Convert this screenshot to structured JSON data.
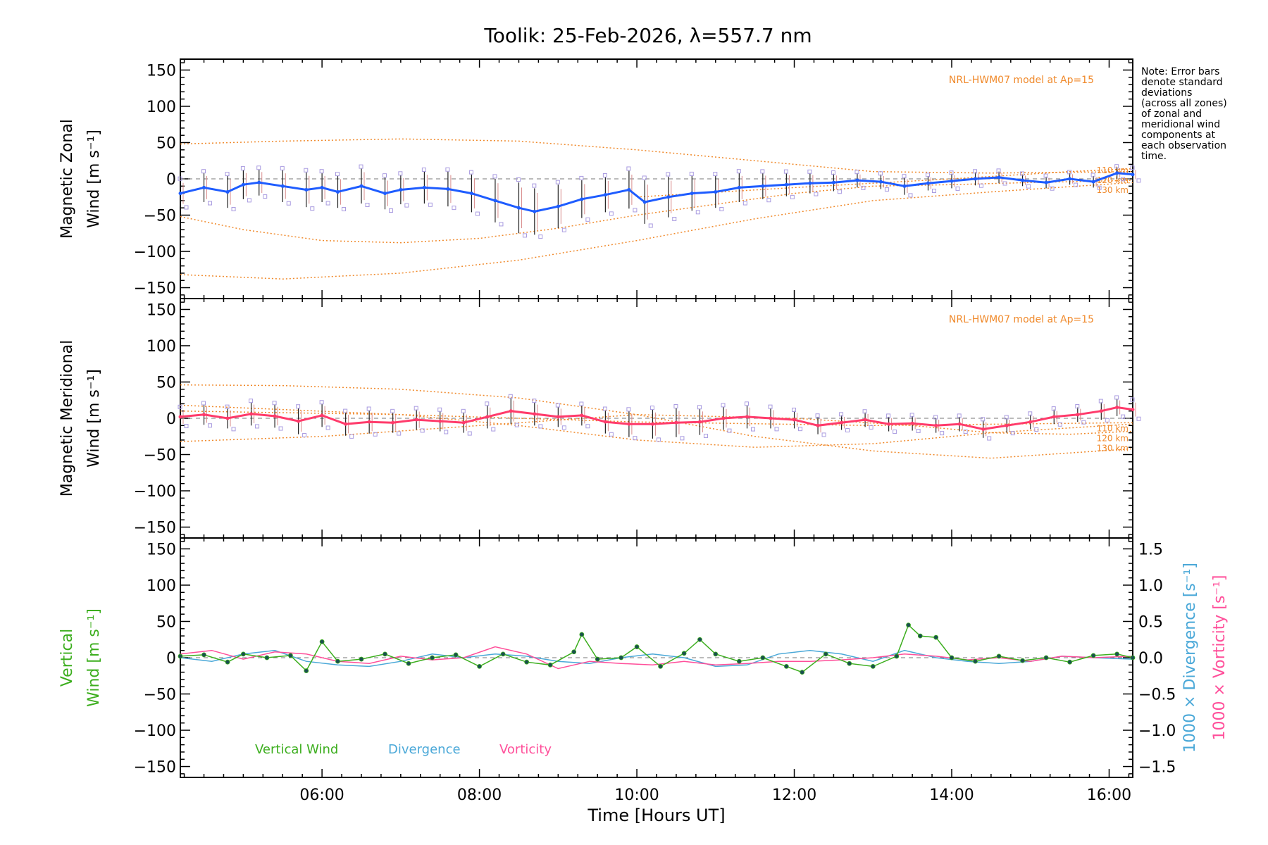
{
  "chart_data": {
    "type": "line",
    "title": "Toolik: 25-Feb-2026, λ=557.7 nm",
    "xlabel": "Time [Hours UT]",
    "xlim": [
      4.2,
      16.3
    ],
    "xticks": [
      6,
      8,
      10,
      12,
      14,
      16
    ],
    "xtick_labels": [
      "06:00",
      "08:00",
      "10:00",
      "12:00",
      "14:00",
      "16:00"
    ],
    "ylim": [
      -165,
      165
    ],
    "yticks": [
      -150,
      -100,
      -50,
      0,
      50,
      100,
      150
    ],
    "ytick_labels": [
      "−150",
      "−100",
      "−50",
      "0",
      "50",
      "100",
      "150"
    ],
    "note_lines": [
      "Note: Error bars",
      "denote standard",
      "deviations",
      "(across all zones)",
      "of zonal and",
      "meridional wind",
      "components at",
      "each observation",
      "time."
    ],
    "panels": [
      {
        "id": "zonal",
        "ylabel_line1": "Magnetic Zonal",
        "ylabel_line2": "Wind [m s⁻¹]",
        "model_label": "NRL-HWM07 model at Ap=15",
        "series_color": "#1e5cff",
        "series": {
          "name": "Magnetic Zonal Wind",
          "x": [
            4.2,
            4.5,
            4.8,
            5.0,
            5.2,
            5.5,
            5.8,
            6.0,
            6.2,
            6.5,
            6.8,
            7.0,
            7.3,
            7.6,
            7.9,
            8.2,
            8.5,
            8.7,
            9.0,
            9.3,
            9.6,
            9.9,
            10.1,
            10.4,
            10.7,
            11.0,
            11.3,
            11.6,
            11.9,
            12.2,
            12.5,
            12.8,
            13.1,
            13.4,
            13.7,
            14.0,
            14.3,
            14.6,
            14.9,
            15.2,
            15.5,
            15.8,
            16.1,
            16.3
          ],
          "y": [
            -20,
            -12,
            -18,
            -8,
            -5,
            -10,
            -15,
            -12,
            -18,
            -10,
            -20,
            -15,
            -12,
            -14,
            -20,
            -30,
            -40,
            -45,
            -38,
            -28,
            -22,
            -15,
            -32,
            -25,
            -20,
            -18,
            -12,
            -10,
            -8,
            -6,
            -5,
            -2,
            -4,
            -10,
            -6,
            -3,
            0,
            2,
            -2,
            -5,
            0,
            -4,
            8,
            6
          ]
        },
        "errors": [
          18,
          20,
          22,
          20,
          18,
          22,
          24,
          20,
          22,
          24,
          22,
          20,
          22,
          24,
          26,
          30,
          35,
          32,
          30,
          26,
          24,
          26,
          30,
          28,
          24,
          22,
          20,
          18,
          16,
          14,
          12,
          10,
          10,
          12,
          10,
          10,
          9,
          8,
          8,
          8,
          8,
          8,
          8,
          8
        ],
        "model_curves": [
          {
            "label": "",
            "x": [
              4.2,
              5.5,
              7.0,
              8.5,
              10.0,
              11.5,
              13.0,
              14.5,
              16.3
            ],
            "y": [
              48,
              52,
              55,
              52,
              40,
              25,
              10,
              8,
              10
            ]
          },
          {
            "label": "",
            "x": [
              4.2,
              5.0,
              6.0,
              7.0,
              8.0,
              9.0,
              10.0,
              11.0,
              12.0,
              13.0,
              14.0,
              15.0,
              16.3
            ],
            "y": [
              -52,
              -70,
              -85,
              -88,
              -82,
              -68,
              -50,
              -35,
              -20,
              -10,
              -8,
              -5,
              -2
            ]
          },
          {
            "label": "",
            "x": [
              4.2,
              5.5,
              7.0,
              8.5,
              10.0,
              11.5,
              13.0,
              14.5,
              16.3
            ],
            "y": [
              -132,
              -138,
              -130,
              -112,
              -85,
              -55,
              -30,
              -18,
              -5
            ]
          },
          {
            "label": "",
            "x": [
              10.0,
              12.0,
              14.0,
              15.5,
              16.3
            ],
            "y": [
              -25,
              -12,
              0,
              10,
              14
            ]
          }
        ],
        "end_labels": [
          "110 km",
          "120 km",
          "130 km"
        ]
      },
      {
        "id": "meridional",
        "ylabel_line1": "Magnetic Meridional",
        "ylabel_line2": "Wind [m s⁻¹]",
        "model_label": "NRL-HWM07 model at Ap=15",
        "series_color": "#ff3b6b",
        "series": {
          "name": "Magnetic Meridional Wind",
          "x": [
            4.2,
            4.5,
            4.8,
            5.1,
            5.4,
            5.7,
            6.0,
            6.3,
            6.6,
            6.9,
            7.2,
            7.5,
            7.8,
            8.1,
            8.4,
            8.7,
            9.0,
            9.3,
            9.6,
            9.9,
            10.2,
            10.5,
            10.8,
            11.1,
            11.4,
            11.7,
            12.0,
            12.3,
            12.6,
            12.9,
            13.2,
            13.5,
            13.8,
            14.1,
            14.4,
            14.7,
            15.0,
            15.3,
            15.6,
            15.9,
            16.1,
            16.3
          ],
          "y": [
            2,
            5,
            0,
            6,
            3,
            -4,
            4,
            -8,
            -5,
            -6,
            -2,
            -4,
            -6,
            2,
            10,
            6,
            2,
            4,
            -5,
            -8,
            -8,
            -6,
            -5,
            0,
            2,
            0,
            -2,
            -10,
            -6,
            -2,
            -8,
            -7,
            -10,
            -8,
            -15,
            -10,
            -5,
            2,
            5,
            10,
            15,
            12
          ]
        },
        "errors": [
          12,
          14,
          14,
          16,
          16,
          18,
          16,
          16,
          16,
          14,
          14,
          14,
          14,
          16,
          18,
          16,
          14,
          14,
          16,
          18,
          20,
          20,
          18,
          16,
          16,
          14,
          12,
          12,
          10,
          10,
          10,
          10,
          10,
          10,
          12,
          10,
          10,
          10,
          10,
          12,
          12,
          12
        ],
        "model_curves": [
          {
            "label": "",
            "x": [
              4.2,
              5.5,
              7.0,
              8.5,
              10.0,
              11.5,
              13.0,
              14.5,
              16.3
            ],
            "y": [
              46,
              45,
              40,
              28,
              5,
              -25,
              -45,
              -55,
              -42
            ]
          },
          {
            "label": "",
            "x": [
              4.2,
              6.0,
              8.0,
              10.0,
              12.0,
              13.5,
              14.5,
              15.5,
              16.3
            ],
            "y": [
              -32,
              -25,
              -10,
              5,
              0,
              -10,
              -20,
              -22,
              -18
            ]
          },
          {
            "label": "",
            "x": [
              4.2,
              5.5,
              7.0,
              8.5,
              10.0,
              11.5,
              13.0,
              14.5,
              16.3
            ],
            "y": [
              18,
              12,
              5,
              -10,
              -30,
              -40,
              -35,
              -20,
              -8
            ]
          },
          {
            "label": "",
            "x": [
              4.2,
              7.0,
              10.0,
              13.0,
              16.3
            ],
            "y": [
              10,
              5,
              -5,
              -10,
              -6
            ]
          }
        ],
        "end_labels": [
          "110 km",
          "120 km",
          "130 km"
        ]
      },
      {
        "id": "vertical",
        "ylabel_line1": "Vertical",
        "ylabel_line2": "Wind [m s⁻¹]",
        "right_ylim": [
          -1.65,
          1.65
        ],
        "right_yticks": [
          -1.5,
          -1.0,
          -0.5,
          0.0,
          0.5,
          1.0,
          1.5
        ],
        "right_ytick_labels": [
          "−1.5",
          "−1.0",
          "−0.5",
          "0.0",
          "0.5",
          "1.0",
          "1.5"
        ],
        "right_label_div": "1000 × Divergence [s⁻¹]",
        "right_label_vor": "1000 × Vorticity [s⁻¹]",
        "legend": [
          "Vertical Wind",
          "Divergence",
          "Vorticity"
        ],
        "series": [
          {
            "name": "Vertical Wind",
            "color": "#3cae1e",
            "x": [
              4.2,
              4.5,
              4.8,
              5.0,
              5.3,
              5.6,
              5.8,
              6.0,
              6.2,
              6.5,
              6.8,
              7.1,
              7.4,
              7.7,
              8.0,
              8.3,
              8.6,
              8.9,
              9.2,
              9.3,
              9.5,
              9.8,
              10.0,
              10.3,
              10.6,
              10.8,
              11.0,
              11.3,
              11.6,
              11.9,
              12.1,
              12.4,
              12.7,
              13.0,
              13.3,
              13.45,
              13.6,
              13.8,
              14.0,
              14.3,
              14.6,
              14.9,
              15.2,
              15.5,
              15.8,
              16.1,
              16.3
            ],
            "y": [
              2,
              4,
              -6,
              5,
              0,
              3,
              -18,
              22,
              -5,
              -2,
              5,
              -8,
              0,
              4,
              -12,
              5,
              -6,
              -10,
              8,
              32,
              -2,
              0,
              15,
              -12,
              6,
              25,
              5,
              -5,
              0,
              -12,
              -20,
              5,
              -8,
              -12,
              2,
              45,
              30,
              28,
              0,
              -5,
              2,
              -4,
              0,
              -6,
              3,
              5,
              0
            ]
          },
          {
            "name": "Divergence",
            "color": "#4aa8d8",
            "x": [
              4.2,
              4.6,
              5.0,
              5.4,
              5.8,
              6.2,
              6.6,
              7.0,
              7.4,
              7.8,
              8.2,
              8.6,
              9.0,
              9.4,
              9.8,
              10.2,
              10.6,
              11.0,
              11.4,
              11.8,
              12.2,
              12.6,
              13.0,
              13.4,
              13.8,
              14.2,
              14.6,
              15.0,
              15.4,
              15.8,
              16.3
            ],
            "y": [
              0.0,
              -0.05,
              0.05,
              0.1,
              -0.05,
              -0.1,
              -0.12,
              -0.05,
              0.05,
              0.0,
              0.05,
              0.02,
              -0.05,
              -0.08,
              0.0,
              0.05,
              0.0,
              -0.12,
              -0.1,
              0.05,
              0.1,
              0.05,
              -0.05,
              0.1,
              0.0,
              -0.05,
              -0.08,
              -0.05,
              0.02,
              0.0,
              -0.02
            ]
          },
          {
            "name": "Vorticity",
            "color": "#ff4f9a",
            "x": [
              4.2,
              4.6,
              5.0,
              5.4,
              5.8,
              6.2,
              6.6,
              7.0,
              7.4,
              7.8,
              8.2,
              8.6,
              9.0,
              9.4,
              9.8,
              10.2,
              10.6,
              11.0,
              11.4,
              11.8,
              12.2,
              12.6,
              13.0,
              13.4,
              13.8,
              14.2,
              14.6,
              15.0,
              15.4,
              15.8,
              16.3
            ],
            "y": [
              0.05,
              0.1,
              -0.02,
              0.08,
              0.05,
              -0.05,
              -0.08,
              0.02,
              -0.03,
              0.0,
              0.15,
              0.05,
              -0.15,
              -0.05,
              -0.08,
              -0.1,
              -0.05,
              -0.1,
              -0.08,
              -0.05,
              -0.05,
              -0.03,
              0.0,
              0.05,
              0.02,
              -0.03,
              0.0,
              -0.05,
              0.02,
              0.0,
              0.02
            ]
          }
        ]
      }
    ]
  }
}
